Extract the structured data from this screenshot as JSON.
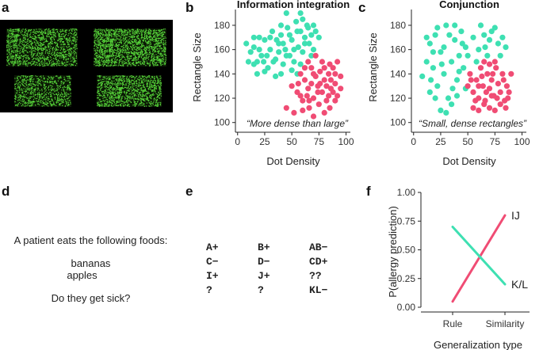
{
  "panel_letters": [
    "a",
    "b",
    "c",
    "d",
    "e",
    "f"
  ],
  "colors": {
    "teal": "#3ee0b2",
    "pink": "#f04c74",
    "stimulus_bg": "#000000",
    "stimulus_dot": "#57d53a"
  },
  "panel_a": {
    "stimuli": [
      {
        "dot_density": 0.55,
        "rectangle_size": "small"
      },
      {
        "dot_density": 0.7,
        "rectangle_size": "large"
      },
      {
        "dot_density": 0.45,
        "rectangle_size": "small"
      },
      {
        "dot_density": 0.6,
        "rectangle_size": "medium"
      }
    ]
  },
  "panel_d": {
    "prompt": "A patient eats the following foods:",
    "foods": [
      "bananas",
      "apples"
    ],
    "question": "Do they get sick?"
  },
  "panel_e": {
    "items": [
      "A+",
      "B+",
      "AB−",
      "C−",
      "D−",
      "CD+",
      "I+",
      "J+",
      "??",
      "?",
      "?",
      "KL−"
    ]
  },
  "chart_data": [
    {
      "type": "scatter",
      "title": "Information integration",
      "xlabel": "Dot Density",
      "ylabel": "Rectangle Size",
      "xlim": [
        -2,
        104
      ],
      "ylim": [
        92,
        193
      ],
      "xticks": [
        0,
        25,
        50,
        75,
        100
      ],
      "yticks": [
        100,
        120,
        140,
        160,
        180
      ],
      "annotation": "“More dense than large”",
      "grid": false,
      "series": [
        {
          "color": "#3ee0b2",
          "points": [
            [
              8,
              165
            ],
            [
              12,
              158
            ],
            [
              15,
              162
            ],
            [
              18,
              150
            ],
            [
              20,
              170
            ],
            [
              22,
              155
            ],
            [
              25,
              168
            ],
            [
              28,
              145
            ],
            [
              30,
              160
            ],
            [
              32,
              175
            ],
            [
              35,
              152
            ],
            [
              38,
              165
            ],
            [
              40,
              172
            ],
            [
              42,
              148
            ],
            [
              44,
              160
            ],
            [
              46,
              178
            ],
            [
              48,
              155
            ],
            [
              50,
              168
            ],
            [
              52,
              150
            ],
            [
              54,
              183
            ],
            [
              56,
              162
            ],
            [
              58,
              175
            ],
            [
              60,
              158
            ],
            [
              62,
              170
            ],
            [
              64,
              180
            ],
            [
              66,
              165
            ],
            [
              68,
              172
            ],
            [
              70,
              160
            ],
            [
              72,
              175
            ],
            [
              58,
              190
            ],
            [
              45,
              190
            ],
            [
              35,
              138
            ],
            [
              25,
              142
            ],
            [
              15,
              148
            ],
            [
              40,
              140
            ],
            [
              50,
              143
            ],
            [
              55,
              140
            ],
            [
              20,
              160
            ],
            [
              30,
              170
            ],
            [
              38,
              158
            ],
            [
              48,
              172
            ],
            [
              60,
              185
            ],
            [
              65,
              178
            ],
            [
              70,
              180
            ],
            [
              75,
              170
            ],
            [
              42,
              165
            ],
            [
              52,
              160
            ],
            [
              33,
              150
            ],
            [
              27,
              155
            ],
            [
              18,
              140
            ],
            [
              10,
              150
            ],
            [
              45,
              155
            ],
            [
              55,
              175
            ],
            [
              62,
              165
            ],
            [
              36,
              168
            ],
            [
              24,
              150
            ],
            [
              58,
              148
            ],
            [
              68,
              155
            ],
            [
              15,
              170
            ],
            [
              40,
              180
            ]
          ]
        },
        {
          "color": "#f04c74",
          "points": [
            [
              50,
              130
            ],
            [
              55,
              125
            ],
            [
              58,
              140
            ],
            [
              60,
              118
            ],
            [
              62,
              135
            ],
            [
              65,
              128
            ],
            [
              68,
              145
            ],
            [
              70,
              120
            ],
            [
              72,
              138
            ],
            [
              74,
              130
            ],
            [
              76,
              142
            ],
            [
              78,
              125
            ],
            [
              80,
              135
            ],
            [
              82,
              118
            ],
            [
              84,
              140
            ],
            [
              86,
              128
            ],
            [
              88,
              145
            ],
            [
              90,
              132
            ],
            [
              92,
              122
            ],
            [
              95,
              138
            ],
            [
              45,
              112
            ],
            [
              52,
              108
            ],
            [
              60,
              110
            ],
            [
              66,
              112
            ],
            [
              75,
              115
            ],
            [
              85,
              112
            ],
            [
              70,
              105
            ],
            [
              80,
              108
            ],
            [
              90,
              118
            ],
            [
              95,
              128
            ],
            [
              65,
              150
            ],
            [
              72,
              155
            ],
            [
              78,
              150
            ],
            [
              85,
              148
            ],
            [
              92,
              150
            ],
            [
              64,
              122
            ],
            [
              68,
              132
            ],
            [
              74,
              125
            ],
            [
              82,
              130
            ],
            [
              88,
              125
            ],
            [
              56,
              132
            ],
            [
              62,
              145
            ],
            [
              76,
              132
            ],
            [
              84,
              122
            ],
            [
              90,
              140
            ],
            [
              58,
              122
            ],
            [
              70,
              140
            ],
            [
              80,
              145
            ],
            [
              86,
              135
            ],
            [
              66,
              118
            ]
          ]
        }
      ]
    },
    {
      "type": "scatter",
      "title": "Conjunction",
      "xlabel": "Dot Density",
      "ylabel": "Rectangle Size",
      "xlim": [
        -2,
        104
      ],
      "ylim": [
        92,
        193
      ],
      "xticks": [
        0,
        25,
        50,
        75,
        100
      ],
      "yticks": [
        100,
        120,
        140,
        160,
        180
      ],
      "annotation": "“Small, dense rectangles”",
      "grid": false,
      "series": [
        {
          "color": "#3ee0b2",
          "points": [
            [
              8,
              138
            ],
            [
              12,
              150
            ],
            [
              15,
              165
            ],
            [
              18,
              145
            ],
            [
              20,
              172
            ],
            [
              22,
              130
            ],
            [
              25,
              158
            ],
            [
              28,
              140
            ],
            [
              30,
              180
            ],
            [
              32,
              120
            ],
            [
              35,
              150
            ],
            [
              38,
              168
            ],
            [
              40,
              135
            ],
            [
              42,
              155
            ],
            [
              44,
              175
            ],
            [
              46,
              145
            ],
            [
              48,
              128
            ],
            [
              25,
              110
            ],
            [
              30,
              108
            ],
            [
              35,
              115
            ],
            [
              20,
              120
            ],
            [
              15,
              125
            ],
            [
              40,
              122
            ],
            [
              45,
              165
            ],
            [
              22,
              178
            ],
            [
              28,
              162
            ],
            [
              33,
              172
            ],
            [
              38,
              180
            ],
            [
              18,
              158
            ],
            [
              12,
              170
            ],
            [
              60,
              160
            ],
            [
              65,
              172
            ],
            [
              70,
              168
            ],
            [
              75,
              178
            ],
            [
              80,
              155
            ],
            [
              85,
              162
            ],
            [
              62,
              180
            ],
            [
              68,
              155
            ],
            [
              72,
              175
            ],
            [
              78,
              165
            ],
            [
              55,
              170
            ],
            [
              58,
              150
            ],
            [
              66,
              162
            ],
            [
              82,
              170
            ],
            [
              50,
              155
            ],
            [
              42,
              142
            ],
            [
              36,
              128
            ],
            [
              26,
              148
            ],
            [
              16,
              135
            ],
            [
              48,
              162
            ]
          ]
        },
        {
          "color": "#f04c74",
          "points": [
            [
              50,
              130
            ],
            [
              52,
              140
            ],
            [
              55,
              125
            ],
            [
              58,
              135
            ],
            [
              60,
              120
            ],
            [
              62,
              145
            ],
            [
              64,
              130
            ],
            [
              66,
              118
            ],
            [
              68,
              140
            ],
            [
              70,
              128
            ],
            [
              72,
              135
            ],
            [
              74,
              122
            ],
            [
              76,
              145
            ],
            [
              78,
              132
            ],
            [
              80,
              125
            ],
            [
              82,
              140
            ],
            [
              84,
              118
            ],
            [
              86,
              130
            ],
            [
              88,
              125
            ],
            [
              90,
              140
            ],
            [
              55,
              112
            ],
            [
              60,
              110
            ],
            [
              65,
              115
            ],
            [
              70,
              112
            ],
            [
              75,
              110
            ],
            [
              80,
              115
            ],
            [
              85,
              112
            ],
            [
              65,
              150
            ],
            [
              70,
              148
            ],
            [
              75,
              150
            ],
            [
              53,
              135
            ],
            [
              57,
              118
            ],
            [
              63,
              138
            ],
            [
              67,
              125
            ],
            [
              73,
              140
            ],
            [
              77,
              120
            ],
            [
              83,
              135
            ],
            [
              87,
              120
            ],
            [
              60,
              130
            ],
            [
              72,
              122
            ]
          ]
        }
      ]
    },
    {
      "type": "line",
      "xlabel": "Generalization type",
      "ylabel": "P(allergy prediction)",
      "categories": [
        "Rule",
        "Similarity"
      ],
      "ylim": [
        0.0,
        1.0
      ],
      "yticks": [
        "0.00",
        "0.25",
        "0.50",
        "0.75",
        "1.00"
      ],
      "grid": false,
      "series": [
        {
          "name": "IJ",
          "color": "#f04c74",
          "values": [
            0.05,
            0.8
          ]
        },
        {
          "name": "K/L",
          "color": "#3ee0b2",
          "values": [
            0.7,
            0.2
          ]
        }
      ]
    }
  ]
}
